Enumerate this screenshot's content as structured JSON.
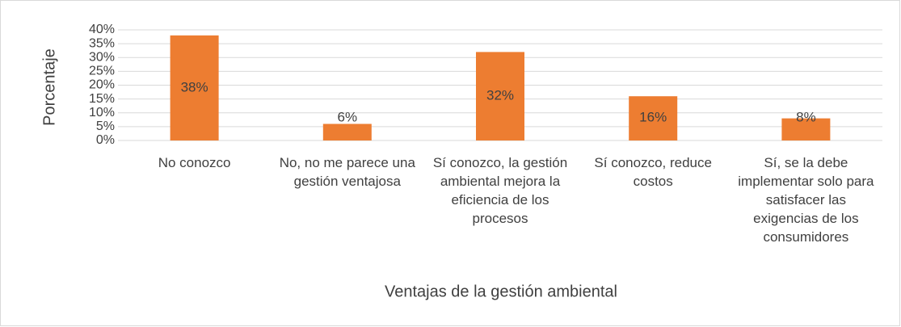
{
  "chart_data": {
    "type": "bar",
    "y_label": "Porcentaje",
    "x_label": "Ventajas de la gestión ambiental",
    "categories": [
      "No conozco",
      "No, no me parece una gestión ventajosa",
      "Sí conozco, la gestión ambiental mejora la eficiencia de los procesos",
      "Sí conozco, reduce costos",
      "Sí, se la debe implementar solo para satisfacer las exigencias de los consumidores"
    ],
    "values": [
      38,
      6,
      32,
      16,
      8
    ],
    "value_labels": [
      "38%",
      "6%",
      "32%",
      "16%",
      "8%"
    ],
    "color": "#ed7d31",
    "ylim": [
      0,
      40
    ],
    "yticks": [
      {
        "value": 0,
        "label": "0%"
      },
      {
        "value": 5,
        "label": "5%"
      },
      {
        "value": 10,
        "label": "10%"
      },
      {
        "value": 15,
        "label": "15%"
      },
      {
        "value": 20,
        "label": "20%"
      },
      {
        "value": 25,
        "label": "25%"
      },
      {
        "value": 30,
        "label": "30%"
      },
      {
        "value": 35,
        "label": "35%"
      },
      {
        "value": 40,
        "label": "40%"
      }
    ],
    "grid": true
  }
}
